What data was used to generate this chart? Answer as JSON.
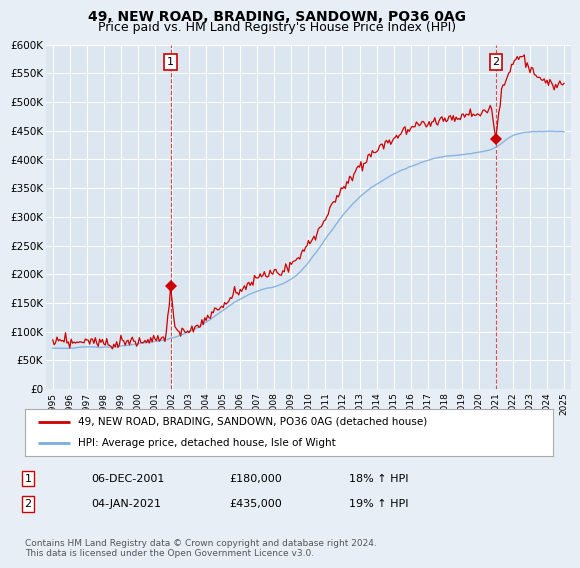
{
  "title": "49, NEW ROAD, BRADING, SANDOWN, PO36 0AG",
  "subtitle": "Price paid vs. HM Land Registry's House Price Index (HPI)",
  "ylim": [
    0,
    600000
  ],
  "yticks": [
    0,
    50000,
    100000,
    150000,
    200000,
    250000,
    300000,
    350000,
    400000,
    450000,
    500000,
    550000,
    600000
  ],
  "ytick_labels": [
    "£0",
    "£50K",
    "£100K",
    "£150K",
    "£200K",
    "£250K",
    "£300K",
    "£350K",
    "£400K",
    "£450K",
    "£500K",
    "£550K",
    "£600K"
  ],
  "xlim_start": 1994.6,
  "xlim_end": 2025.4,
  "background_color": "#e8eef5",
  "plot_bg_color": "#dce6f0",
  "grid_color": "#ffffff",
  "red_line_color": "#cc0000",
  "blue_line_color": "#7aacde",
  "sale1_x": 2001.92,
  "sale1_y": 180000,
  "sale2_x": 2021.01,
  "sale2_y": 435000,
  "legend_label_red": "49, NEW ROAD, BRADING, SANDOWN, PO36 0AG (detached house)",
  "legend_label_blue": "HPI: Average price, detached house, Isle of Wight",
  "table_row1": [
    "1",
    "06-DEC-2001",
    "£180,000",
    "18% ↑ HPI"
  ],
  "table_row2": [
    "2",
    "04-JAN-2021",
    "£435,000",
    "19% ↑ HPI"
  ],
  "footer_text": "Contains HM Land Registry data © Crown copyright and database right 2024.\nThis data is licensed under the Open Government Licence v3.0.",
  "title_fontsize": 10,
  "subtitle_fontsize": 9
}
